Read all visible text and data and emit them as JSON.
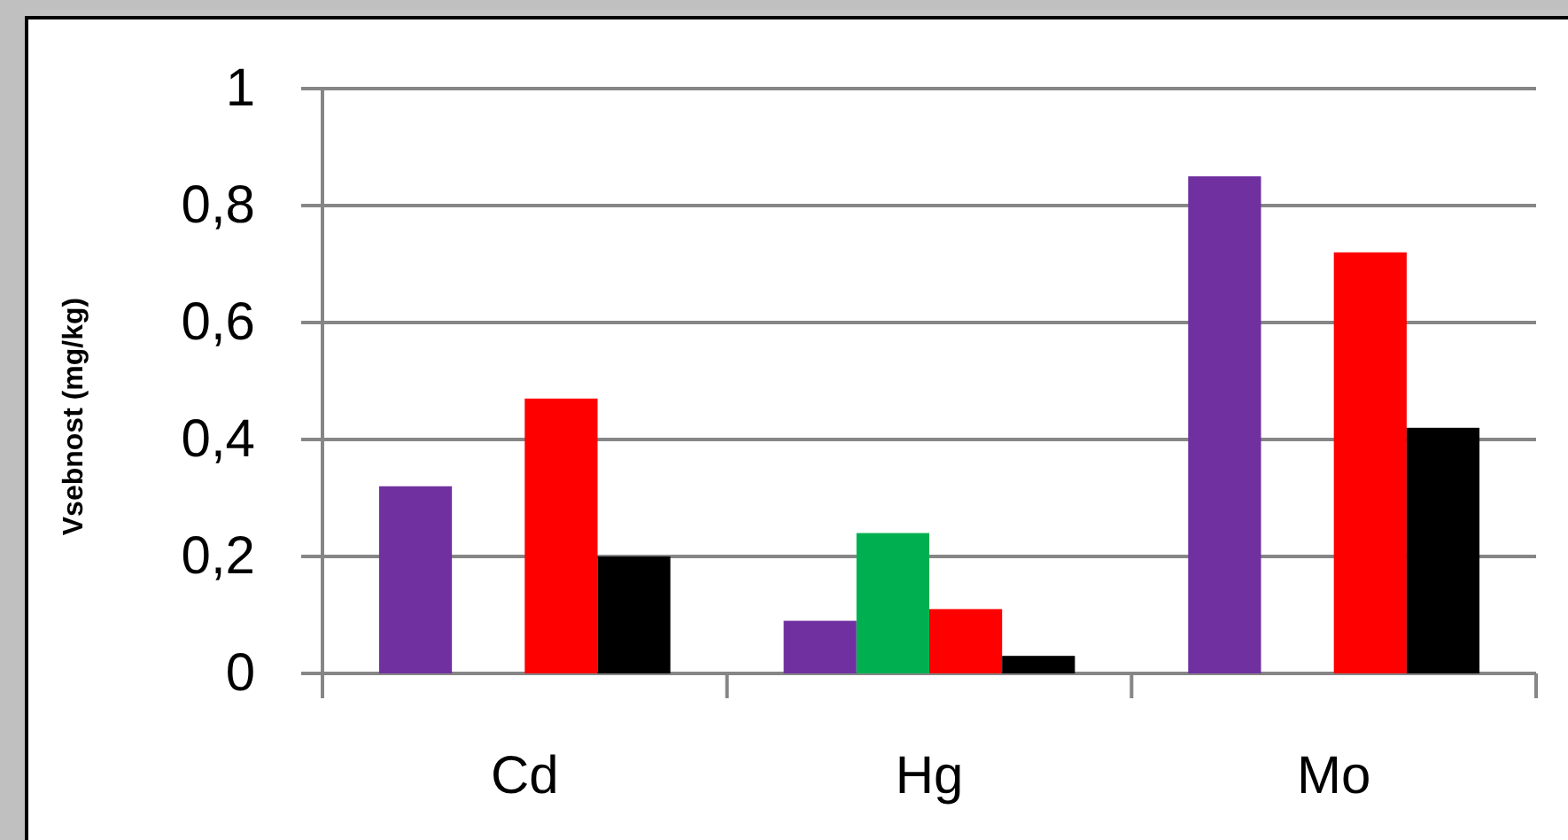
{
  "chart_data": {
    "type": "bar",
    "ylabel": "Vsebnost (mg/kg)",
    "categories": [
      "Cd",
      "Hg",
      "Mo"
    ],
    "series": [
      {
        "color": "#7030a0",
        "values": [
          0.32,
          0.09,
          0.85
        ]
      },
      {
        "color": "#00b050",
        "values": [
          null,
          0.24,
          null
        ]
      },
      {
        "color": "#ff0000",
        "values": [
          0.47,
          0.11,
          0.72
        ]
      },
      {
        "color": "#000000",
        "values": [
          0.2,
          0.03,
          0.42
        ]
      }
    ],
    "ylim": [
      0,
      1
    ],
    "yticks": [
      {
        "value": 0,
        "label": "0"
      },
      {
        "value": 0.2,
        "label": "0,2"
      },
      {
        "value": 0.4,
        "label": "0,4"
      },
      {
        "value": 0.6,
        "label": "0,6"
      },
      {
        "value": 0.8,
        "label": "0,8"
      },
      {
        "value": 1,
        "label": "1"
      }
    ],
    "grid": "y"
  }
}
